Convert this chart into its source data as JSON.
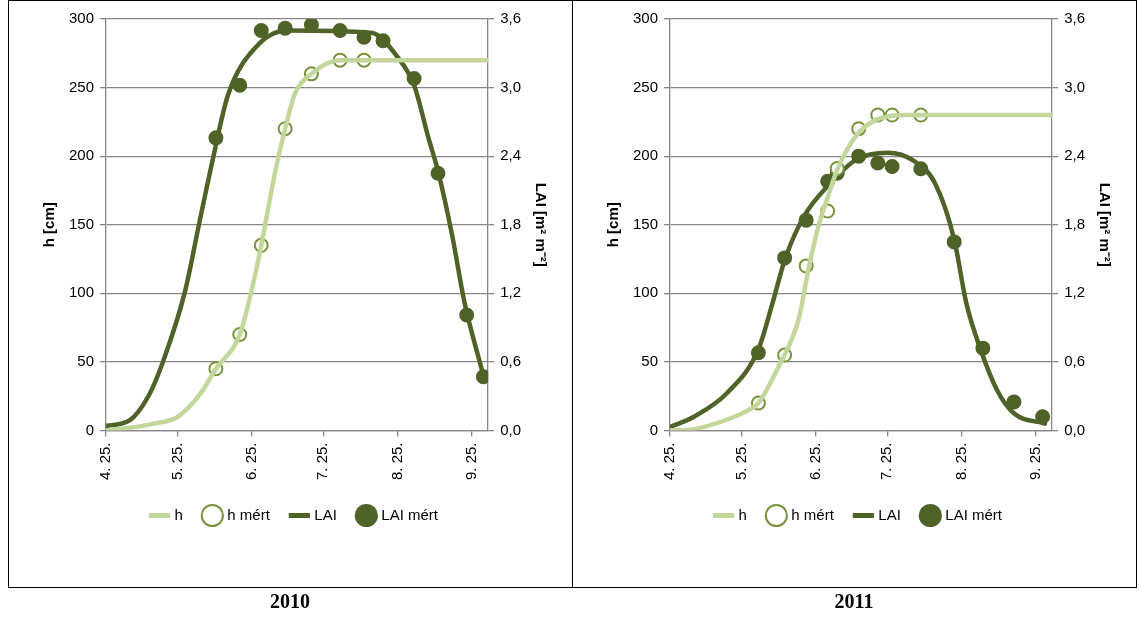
{
  "chart_data": [
    {
      "type": "line",
      "title": "2010",
      "ylabel": "h [cm]",
      "y2label": "LAI [m² m⁻²]",
      "xlim": [
        "--04-25",
        "--10-02"
      ],
      "xticks": [
        {
          "value": "--04-25",
          "label": "4. 25."
        },
        {
          "value": "--05-25",
          "label": "5. 25."
        },
        {
          "value": "--06-25",
          "label": "6. 25."
        },
        {
          "value": "--07-25",
          "label": "7. 25."
        },
        {
          "value": "--08-25",
          "label": "8. 25."
        },
        {
          "value": "--09-25",
          "label": "9. 25."
        }
      ],
      "ylim": [
        0,
        300
      ],
      "yticks": [
        0,
        50,
        100,
        150,
        200,
        250,
        300
      ],
      "y2lim": [
        0,
        3.6
      ],
      "y2ticks": [
        {
          "value": 0,
          "label": "0,0"
        },
        {
          "value": 0.6,
          "label": "0,6"
        },
        {
          "value": 1.2,
          "label": "1,2"
        },
        {
          "value": 1.8,
          "label": "1,8"
        },
        {
          "value": 2.4,
          "label": "2,4"
        },
        {
          "value": 3.0,
          "label": "3,0"
        },
        {
          "value": 3.6,
          "label": "3,6"
        }
      ],
      "grid": "y",
      "legend": "bottom",
      "series": [
        {
          "type": "line",
          "name": "h",
          "color": "#c3d69b",
          "axis": "y",
          "marker": "none",
          "x": [
            "--04-25",
            "--05-05",
            "--05-15",
            "--05-25",
            "--06-04",
            "--06-10",
            "--06-20",
            "--06-26",
            "--06-29",
            "--07-05",
            "--07-09",
            "--07-13",
            "--07-20",
            "--08-01",
            "--08-13",
            "--09-02",
            "--10-02"
          ],
          "values": [
            0,
            2,
            5,
            10,
            28,
            45,
            70,
            110,
            135,
            190,
            220,
            245,
            260,
            270,
            270,
            270,
            270
          ]
        },
        {
          "type": "scatter",
          "name": "h mért",
          "color": "#77933c",
          "axis": "y",
          "marker": "circle-open",
          "x": [
            "--06-10",
            "--06-20",
            "--06-29",
            "--07-09",
            "--07-20",
            "--08-01",
            "--08-11"
          ],
          "values": [
            45,
            70,
            135,
            220,
            260,
            270,
            270
          ]
        },
        {
          "type": "line",
          "name": "LAI",
          "color": "#4f6228",
          "axis": "y2",
          "marker": "none",
          "x": [
            "--04-25",
            "--05-05",
            "--05-13",
            "--05-19",
            "--05-28",
            "--06-03",
            "--06-09",
            "--06-15",
            "--06-27",
            "--07-10",
            "--08-14",
            "--08-25",
            "--09-01",
            "--09-07",
            "--09-11",
            "--09-17",
            "--09-22",
            "--09-30"
          ],
          "values": [
            0.04,
            0.09,
            0.31,
            0.61,
            1.21,
            1.81,
            2.4,
            2.93,
            3.36,
            3.5,
            3.48,
            3.27,
            3.02,
            2.56,
            2.27,
            1.7,
            1.13,
            0.48
          ]
        },
        {
          "type": "scatter",
          "name": "LAI mért",
          "color": "#4f6228",
          "axis": "y2",
          "marker": "circle",
          "x": [
            "--06-10",
            "--06-20",
            "--06-29",
            "--07-09",
            "--07-20",
            "--08-01",
            "--08-11",
            "--08-19",
            "--09-01",
            "--09-11",
            "--09-23",
            "--09-30"
          ],
          "values": [
            2.56,
            3.02,
            3.5,
            3.52,
            3.55,
            3.5,
            3.44,
            3.41,
            3.08,
            2.25,
            1.01,
            0.47
          ]
        }
      ]
    },
    {
      "type": "line",
      "title": "2011",
      "ylabel": "h [cm]",
      "y2label": "LAI [m² m⁻²]",
      "xlim": [
        "--04-25",
        "--10-02"
      ],
      "xticks": [
        {
          "value": "--04-25",
          "label": "4. 25."
        },
        {
          "value": "--05-25",
          "label": "5. 25."
        },
        {
          "value": "--06-25",
          "label": "6. 25."
        },
        {
          "value": "--07-25",
          "label": "7. 25."
        },
        {
          "value": "--08-25",
          "label": "8. 25."
        },
        {
          "value": "--09-25",
          "label": "9. 25."
        }
      ],
      "ylim": [
        0,
        300
      ],
      "yticks": [
        0,
        50,
        100,
        150,
        200,
        250,
        300
      ],
      "y2lim": [
        0,
        3.6
      ],
      "y2ticks": [
        {
          "value": 0,
          "label": "0,0"
        },
        {
          "value": 0.6,
          "label": "0,6"
        },
        {
          "value": 1.2,
          "label": "1,2"
        },
        {
          "value": 1.8,
          "label": "1,8"
        },
        {
          "value": 2.4,
          "label": "2,4"
        },
        {
          "value": 3.0,
          "label": "3,0"
        },
        {
          "value": 3.6,
          "label": "3,6"
        }
      ],
      "grid": "y",
      "legend": "bottom",
      "series": [
        {
          "type": "line",
          "name": "h",
          "color": "#c3d69b",
          "axis": "y",
          "marker": "none",
          "x": [
            "--04-25",
            "--05-05",
            "--05-19",
            "--05-28",
            "--06-01",
            "--06-09",
            "--06-18",
            "--06-22",
            "--06-26",
            "--06-30",
            "--07-04",
            "--07-12",
            "--07-21",
            "--08-03",
            "--10-02"
          ],
          "values": [
            0,
            1,
            8,
            15,
            20,
            45,
            82,
            118,
            148,
            170,
            190,
            215,
            227,
            230,
            230
          ]
        },
        {
          "type": "scatter",
          "name": "h mért",
          "color": "#77933c",
          "axis": "y",
          "marker": "circle-open",
          "x": [
            "--06-01",
            "--06-12",
            "--06-21",
            "--06-30",
            "--07-04",
            "--07-13",
            "--07-21",
            "--07-27",
            "--08-08"
          ],
          "values": [
            20,
            55,
            120,
            160,
            191,
            220,
            230,
            230,
            230
          ]
        },
        {
          "type": "line",
          "name": "LAI",
          "color": "#4f6228",
          "axis": "y2",
          "marker": "none",
          "x": [
            "--04-25",
            "--05-05",
            "--05-19",
            "--06-01",
            "--06-07",
            "--06-12",
            "--06-20",
            "--07-01",
            "--07-12",
            "--07-25",
            "--08-05",
            "--08-14",
            "--08-22",
            "--08-27",
            "--09-02",
            "--09-09",
            "--09-16",
            "--09-29"
          ],
          "values": [
            0.03,
            0.12,
            0.33,
            0.71,
            1.12,
            1.49,
            1.87,
            2.16,
            2.37,
            2.43,
            2.36,
            2.16,
            1.67,
            1.12,
            0.71,
            0.35,
            0.15,
            0.06
          ]
        },
        {
          "type": "scatter",
          "name": "LAI mért",
          "color": "#4f6228",
          "axis": "y2",
          "marker": "circle",
          "x": [
            "--06-01",
            "--06-12",
            "--06-21",
            "--06-30",
            "--07-04",
            "--07-13",
            "--07-21",
            "--07-27",
            "--08-08",
            "--08-22",
            "--09-03",
            "--09-16",
            "--09-28"
          ],
          "values": [
            0.68,
            1.51,
            1.84,
            2.18,
            2.25,
            2.4,
            2.34,
            2.31,
            2.29,
            1.65,
            0.72,
            0.25,
            0.12
          ]
        }
      ]
    }
  ]
}
